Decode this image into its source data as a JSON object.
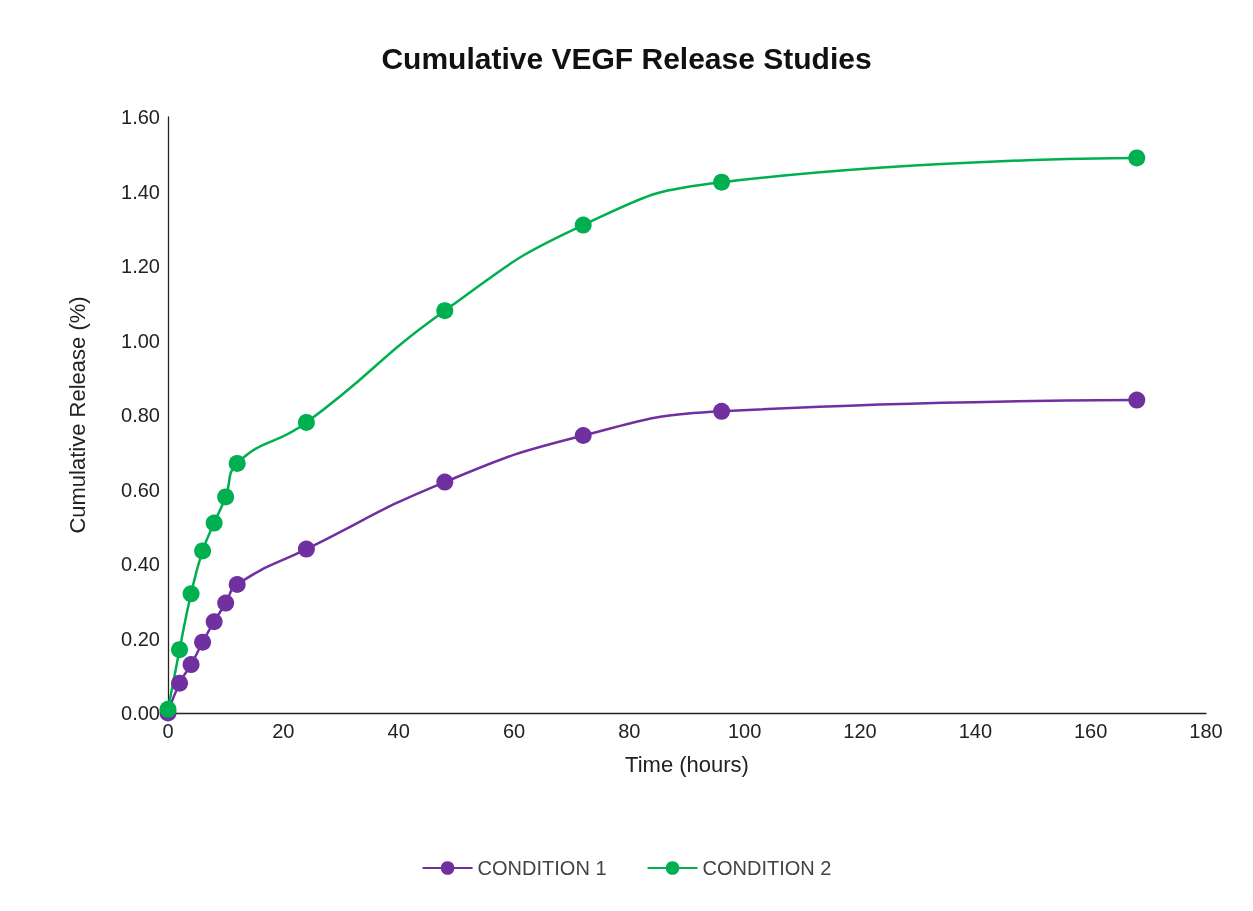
{
  "chart_data": {
    "type": "line",
    "title": "Cumulative VEGF Release Studies",
    "xlabel": "Time (hours)",
    "ylabel": "Cumulative Release (%)",
    "x": [
      0,
      2,
      4,
      6,
      8,
      10,
      12,
      24,
      48,
      72,
      96,
      168
    ],
    "series": [
      {
        "name": "CONDITION 1",
        "color": "#7030a0",
        "values": [
          0.0,
          0.08,
          0.13,
          0.19,
          0.245,
          0.295,
          0.345,
          0.44,
          0.62,
          0.745,
          0.81,
          0.84
        ]
      },
      {
        "name": "CONDITION 2",
        "color": "#00b050",
        "values": [
          0.01,
          0.17,
          0.32,
          0.435,
          0.51,
          0.58,
          0.67,
          0.78,
          1.08,
          1.31,
          1.425,
          1.49
        ]
      }
    ],
    "xlim": [
      0,
      180
    ],
    "xticks": [
      0,
      20,
      40,
      60,
      80,
      100,
      120,
      140,
      160,
      180
    ],
    "ylim": [
      0,
      1.6
    ],
    "yticks": [
      {
        "value": 0,
        "label": "0.00"
      },
      {
        "value": 0.2,
        "label": "0.20"
      },
      {
        "value": 0.4,
        "label": "0.40"
      },
      {
        "value": 0.6,
        "label": "0.60"
      },
      {
        "value": 0.8,
        "label": "0.80"
      },
      {
        "value": 1.0,
        "label": "1.00"
      },
      {
        "value": 1.2,
        "label": "1.20"
      },
      {
        "value": 1.4,
        "label": "1.40"
      },
      {
        "value": 1.6,
        "label": "1.60"
      }
    ],
    "grid": false,
    "legend": "bottom",
    "marker": "circle",
    "line_style": "solid"
  }
}
